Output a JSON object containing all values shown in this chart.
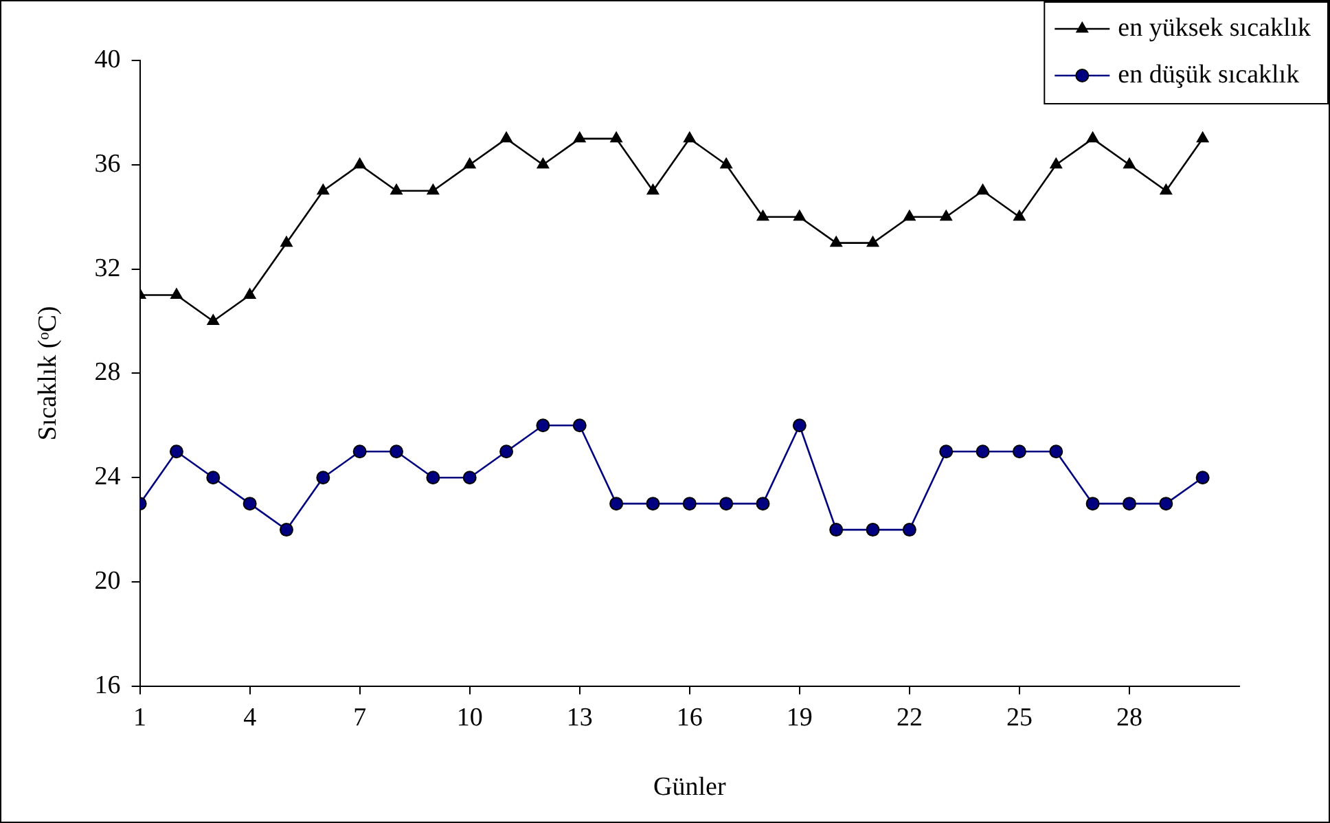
{
  "chart_data": {
    "type": "line",
    "xlabel": "Günler",
    "ylabel": "Sıcaklık (ᵒC)",
    "x": [
      1,
      2,
      3,
      4,
      5,
      6,
      7,
      8,
      9,
      10,
      11,
      12,
      13,
      14,
      15,
      16,
      17,
      18,
      19,
      20,
      21,
      22,
      23,
      24,
      25,
      26,
      27,
      28,
      29,
      30
    ],
    "xlim": [
      1,
      31
    ],
    "xticks": [
      1,
      4,
      7,
      10,
      13,
      16,
      19,
      22,
      25,
      28
    ],
    "ylim": [
      16,
      40
    ],
    "yticks": [
      16,
      20,
      24,
      28,
      32,
      36,
      40
    ],
    "grid": false,
    "legend": "top right",
    "line_style": "solid",
    "series": [
      {
        "name": "en yüksek sıcaklık",
        "color": "#000000",
        "marker": "triangle",
        "values": [
          31,
          31,
          30,
          31,
          33,
          35,
          36,
          35,
          35,
          36,
          37,
          36,
          37,
          37,
          35,
          37,
          36,
          34,
          34,
          33,
          33,
          34,
          34,
          35,
          34,
          36,
          37,
          36,
          35,
          37
        ]
      },
      {
        "name": "en düşük sıcaklık",
        "color": "#000080",
        "marker": "circle",
        "values": [
          23,
          25,
          24,
          23,
          22,
          24,
          25,
          25,
          24,
          24,
          25,
          26,
          26,
          23,
          23,
          23,
          23,
          23,
          26,
          22,
          22,
          22,
          25,
          25,
          25,
          25,
          23,
          23,
          23,
          24
        ]
      }
    ]
  }
}
